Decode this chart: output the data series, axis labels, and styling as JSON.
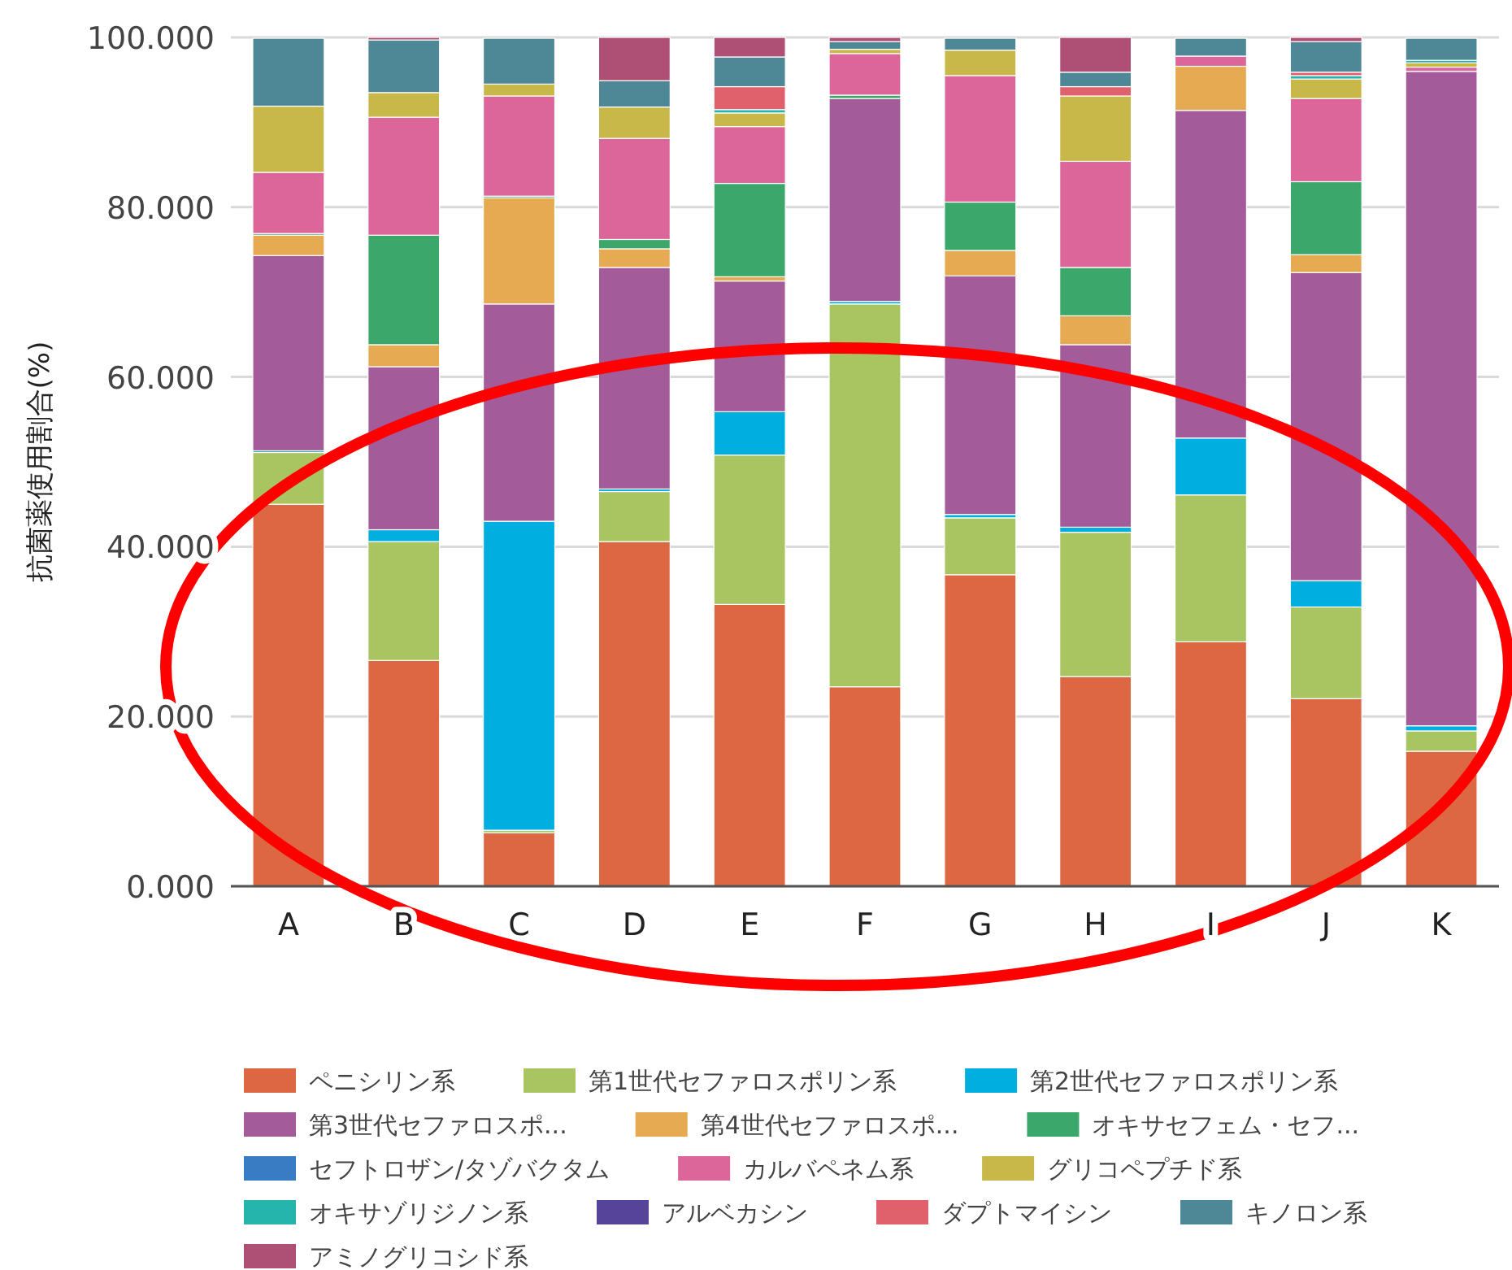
{
  "chart_data": {
    "type": "bar",
    "stacked": true,
    "ylabel": "抗菌薬使用割合(%)",
    "categories": [
      "A",
      "B",
      "C",
      "D",
      "E",
      "F",
      "G",
      "H",
      "I",
      "J",
      "K"
    ],
    "ylim": [
      0,
      100
    ],
    "yticks": [
      {
        "value": 0,
        "label": "0.000"
      },
      {
        "value": 20,
        "label": "20.000"
      },
      {
        "value": 40,
        "label": "40.000"
      },
      {
        "value": 60,
        "label": "60.000"
      },
      {
        "value": 80,
        "label": "80.000"
      },
      {
        "value": 100,
        "label": "100.000"
      }
    ],
    "grid": "y",
    "legend": "bottom",
    "series": [
      {
        "name": "ペニシリン系",
        "color": "#dd6742",
        "values": [
          45.0,
          26.6,
          6.3,
          40.6,
          33.2,
          23.5,
          36.7,
          24.7,
          28.8,
          22.1,
          15.9
        ]
      },
      {
        "name": "第1世代セファロスポリン系",
        "color": "#a9c562",
        "values": [
          6.1,
          14.0,
          0.3,
          5.9,
          17.6,
          45.1,
          6.7,
          17.0,
          17.3,
          10.8,
          2.4
        ]
      },
      {
        "name": "第2世代セファロスポリン系",
        "color": "#00aee0",
        "values": [
          0.2,
          1.4,
          36.4,
          0.3,
          5.1,
          0.3,
          0.4,
          0.6,
          6.7,
          3.1,
          0.6
        ]
      },
      {
        "name": "第3世代セファロスポ...",
        "color": "#a35b99",
        "values": [
          23.0,
          19.2,
          25.6,
          26.1,
          15.4,
          23.9,
          28.1,
          21.5,
          38.6,
          36.3,
          77.1
        ]
      },
      {
        "name": "第4世代セファロスポ...",
        "color": "#e6aa52",
        "values": [
          2.4,
          2.6,
          12.5,
          2.2,
          0.5,
          0,
          3.0,
          3.4,
          5.2,
          2.1,
          0
        ]
      },
      {
        "name": "オキサセフェム・セフ...",
        "color": "#3ca76a",
        "values": [
          0.2,
          12.9,
          0.2,
          1.1,
          11.0,
          0.4,
          5.7,
          5.7,
          0,
          8.6,
          0
        ]
      },
      {
        "name": "セフトロザン/タゾバクタム",
        "color": "#3a7cc4",
        "values": [
          0,
          0,
          0,
          0,
          0,
          0,
          0,
          0,
          0,
          0,
          0
        ]
      },
      {
        "name": "カルバペネム系",
        "color": "#dc6699",
        "values": [
          7.2,
          13.9,
          11.8,
          11.9,
          6.7,
          4.9,
          14.9,
          12.5,
          1.2,
          9.8,
          0.5
        ]
      },
      {
        "name": "グリコペプチド系",
        "color": "#c8b84a",
        "values": [
          7.8,
          2.9,
          1.4,
          3.7,
          1.6,
          0.5,
          3.0,
          7.7,
          0,
          2.3,
          0.5
        ]
      },
      {
        "name": "オキサゾリジノン系",
        "color": "#25b5ad",
        "values": [
          0,
          0,
          0,
          0,
          0.4,
          0,
          0,
          0,
          0,
          0.4,
          0.3
        ]
      },
      {
        "name": "アルベカシン",
        "color": "#56449b",
        "values": [
          0,
          0,
          0,
          0,
          0,
          0,
          0,
          0,
          0,
          0,
          0
        ]
      },
      {
        "name": "ダプトマイシン",
        "color": "#e0606c",
        "values": [
          0,
          0,
          0,
          0,
          2.7,
          0,
          0,
          1.1,
          0,
          0.4,
          0
        ]
      },
      {
        "name": "キノロン系",
        "color": "#4e8896",
        "values": [
          8.0,
          6.2,
          5.4,
          3.1,
          3.5,
          0.9,
          1.4,
          1.7,
          2.1,
          3.6,
          2.6
        ]
      },
      {
        "name": "アミノグリコシド系",
        "color": "#ae4f75",
        "values": [
          0,
          0.3,
          0,
          5.1,
          2.3,
          0.5,
          0,
          4.1,
          0,
          0.5,
          0
        ]
      }
    ]
  }
}
